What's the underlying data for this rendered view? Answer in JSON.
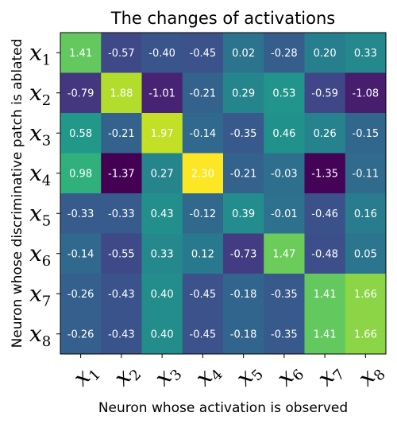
{
  "chart_data": {
    "type": "heatmap",
    "title": "The changes of activations",
    "xlabel": "Neuron whose activation is observed",
    "ylabel": "Neuron whose discriminative patch is ablated",
    "x_ticks": [
      {
        "base": "x",
        "sub": "1"
      },
      {
        "base": "x",
        "sub": "2"
      },
      {
        "base": "x",
        "sub": "3"
      },
      {
        "base": "x",
        "sub": "4"
      },
      {
        "base": "x",
        "sub": "5"
      },
      {
        "base": "x",
        "sub": "6"
      },
      {
        "base": "x",
        "sub": "7"
      },
      {
        "base": "x",
        "sub": "8"
      }
    ],
    "y_ticks": [
      {
        "base": "x",
        "sub": "1"
      },
      {
        "base": "x",
        "sub": "2"
      },
      {
        "base": "x",
        "sub": "3"
      },
      {
        "base": "x",
        "sub": "4"
      },
      {
        "base": "x",
        "sub": "5"
      },
      {
        "base": "x",
        "sub": "6"
      },
      {
        "base": "x",
        "sub": "7"
      },
      {
        "base": "x",
        "sub": "8"
      }
    ],
    "values": [
      [
        1.41,
        -0.57,
        -0.4,
        -0.45,
        0.02,
        -0.28,
        0.2,
        0.33
      ],
      [
        -0.79,
        1.88,
        -1.01,
        -0.21,
        0.29,
        0.53,
        -0.59,
        -1.08
      ],
      [
        0.58,
        -0.21,
        1.97,
        -0.14,
        -0.35,
        0.46,
        0.26,
        -0.15
      ],
      [
        0.98,
        -1.37,
        0.27,
        2.3,
        -0.21,
        -0.03,
        -1.35,
        -0.11
      ],
      [
        -0.33,
        -0.33,
        0.43,
        -0.12,
        0.39,
        -0.01,
        -0.46,
        0.16
      ],
      [
        -0.14,
        -0.55,
        0.33,
        0.12,
        -0.73,
        1.47,
        -0.48,
        0.05
      ],
      [
        -0.26,
        -0.43,
        0.4,
        -0.45,
        -0.18,
        -0.35,
        1.41,
        1.66
      ],
      [
        -0.26,
        -0.43,
        0.4,
        -0.45,
        -0.18,
        -0.35,
        1.41,
        1.66
      ]
    ],
    "value_range": [
      -1.37,
      2.3
    ],
    "colormap": "viridis"
  }
}
